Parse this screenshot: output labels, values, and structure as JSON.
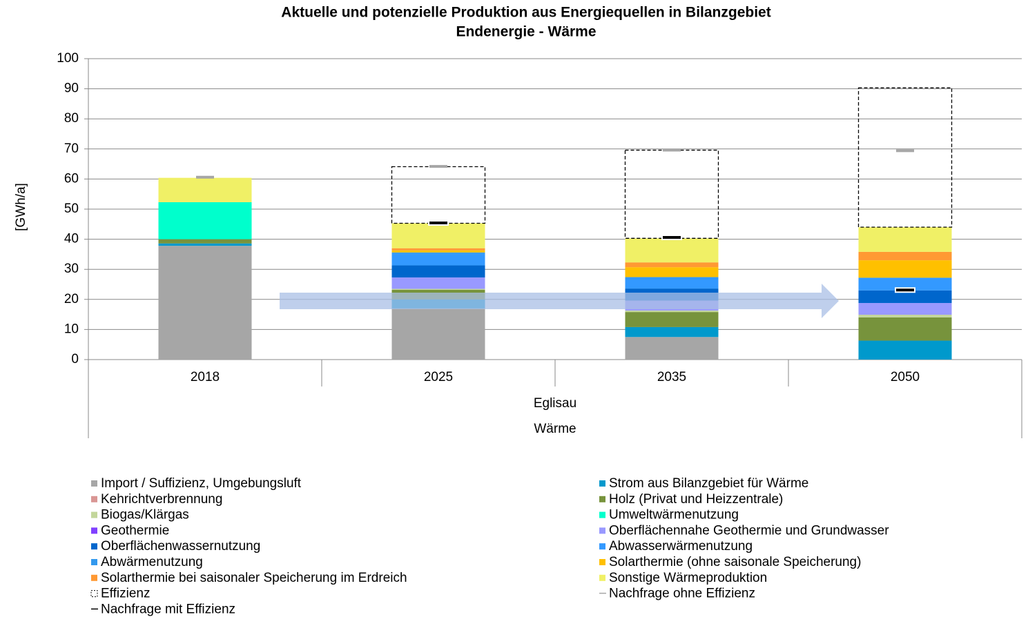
{
  "chart_data": {
    "type": "stacked_bar",
    "title": "Aktuelle  und  potenzielle  Produktion  aus  Energiequellen  in  Bilanzgebiet",
    "subtitle": "Endenergie  -  Wärme",
    "y_label": "[GWh/a]",
    "categories": [
      "2018",
      "2025",
      "2035",
      "2050"
    ],
    "group_labels": [
      "Eglisau",
      "Wärme"
    ],
    "ylim": [
      0,
      100
    ],
    "yticks": [
      0,
      10,
      20,
      30,
      40,
      50,
      60,
      70,
      80,
      90,
      100
    ],
    "grid": true,
    "series": [
      {
        "name": "Import / Suffizienz, Umgebungsluft",
        "color": "#a6a6a6",
        "values": [
          37.8,
          17,
          7.5,
          0
        ]
      },
      {
        "name": "Strom aus Bilanzgebiet für Wärme",
        "color": "#0099cc",
        "values": [
          0.8,
          3,
          3.3,
          6.3
        ]
      },
      {
        "name": "Kehrichtverbrennung",
        "color": "#d99694",
        "values": [
          0,
          0,
          0,
          0
        ]
      },
      {
        "name": "Holz (Privat und Heizzentrale)",
        "color": "#77933c",
        "values": [
          1.4,
          3.2,
          5,
          7.7
        ]
      },
      {
        "name": "Biogas/Klärgas",
        "color": "#c3d69b",
        "values": [
          0,
          0.3,
          0.5,
          0.9
        ]
      },
      {
        "name": "Umweltwärmenutzung",
        "color": "#00ffcc",
        "values": [
          12.3,
          0,
          0,
          0
        ]
      },
      {
        "name": "Geothermie",
        "color": "#8040ff",
        "values": [
          0,
          0,
          0,
          0
        ]
      },
      {
        "name": "Oberflächennahe Geothermie und Grundwasser",
        "color": "#9999ff",
        "values": [
          0,
          3.8,
          3.3,
          3.9
        ]
      },
      {
        "name": "Oberflächenwassernutzung",
        "color": "#0066cc",
        "values": [
          0,
          4,
          4,
          4.2
        ]
      },
      {
        "name": "Abwasserwärmenutzung",
        "color": "#3399ff",
        "values": [
          0,
          4,
          3.8,
          4.2
        ]
      },
      {
        "name": "Abwärmenutzung",
        "color": "#3399ee",
        "values": [
          0,
          0.3,
          0,
          0
        ]
      },
      {
        "name": "Solarthermie (ohne saisonale Speicherung)",
        "color": "#ffc000",
        "values": [
          0,
          0.7,
          3.3,
          5.8
        ]
      },
      {
        "name": "Solarthermie bei saisonaler Speicherung im Erdreich",
        "color": "#ff9933",
        "values": [
          0,
          0.7,
          1.6,
          2.8
        ]
      },
      {
        "name": "Sonstige Wärmeproduktion",
        "color": "#f0f066",
        "values": [
          8.1,
          8.3,
          8,
          8.2
        ]
      },
      {
        "name": "Effizienz",
        "color": "#000000",
        "dashed": true,
        "values": [
          0,
          18.8,
          29.3,
          46.3
        ]
      }
    ],
    "markers": [
      {
        "name": "Nachfrage ohne Effizienz",
        "color": "#a6a6a6",
        "values": [
          60.6,
          64.2,
          69.6,
          69.4
        ]
      },
      {
        "name": "Nachfrage mit Effizienz",
        "color": "#000000",
        "values": [
          null,
          45.4,
          40.6,
          23.1
        ]
      }
    ]
  }
}
